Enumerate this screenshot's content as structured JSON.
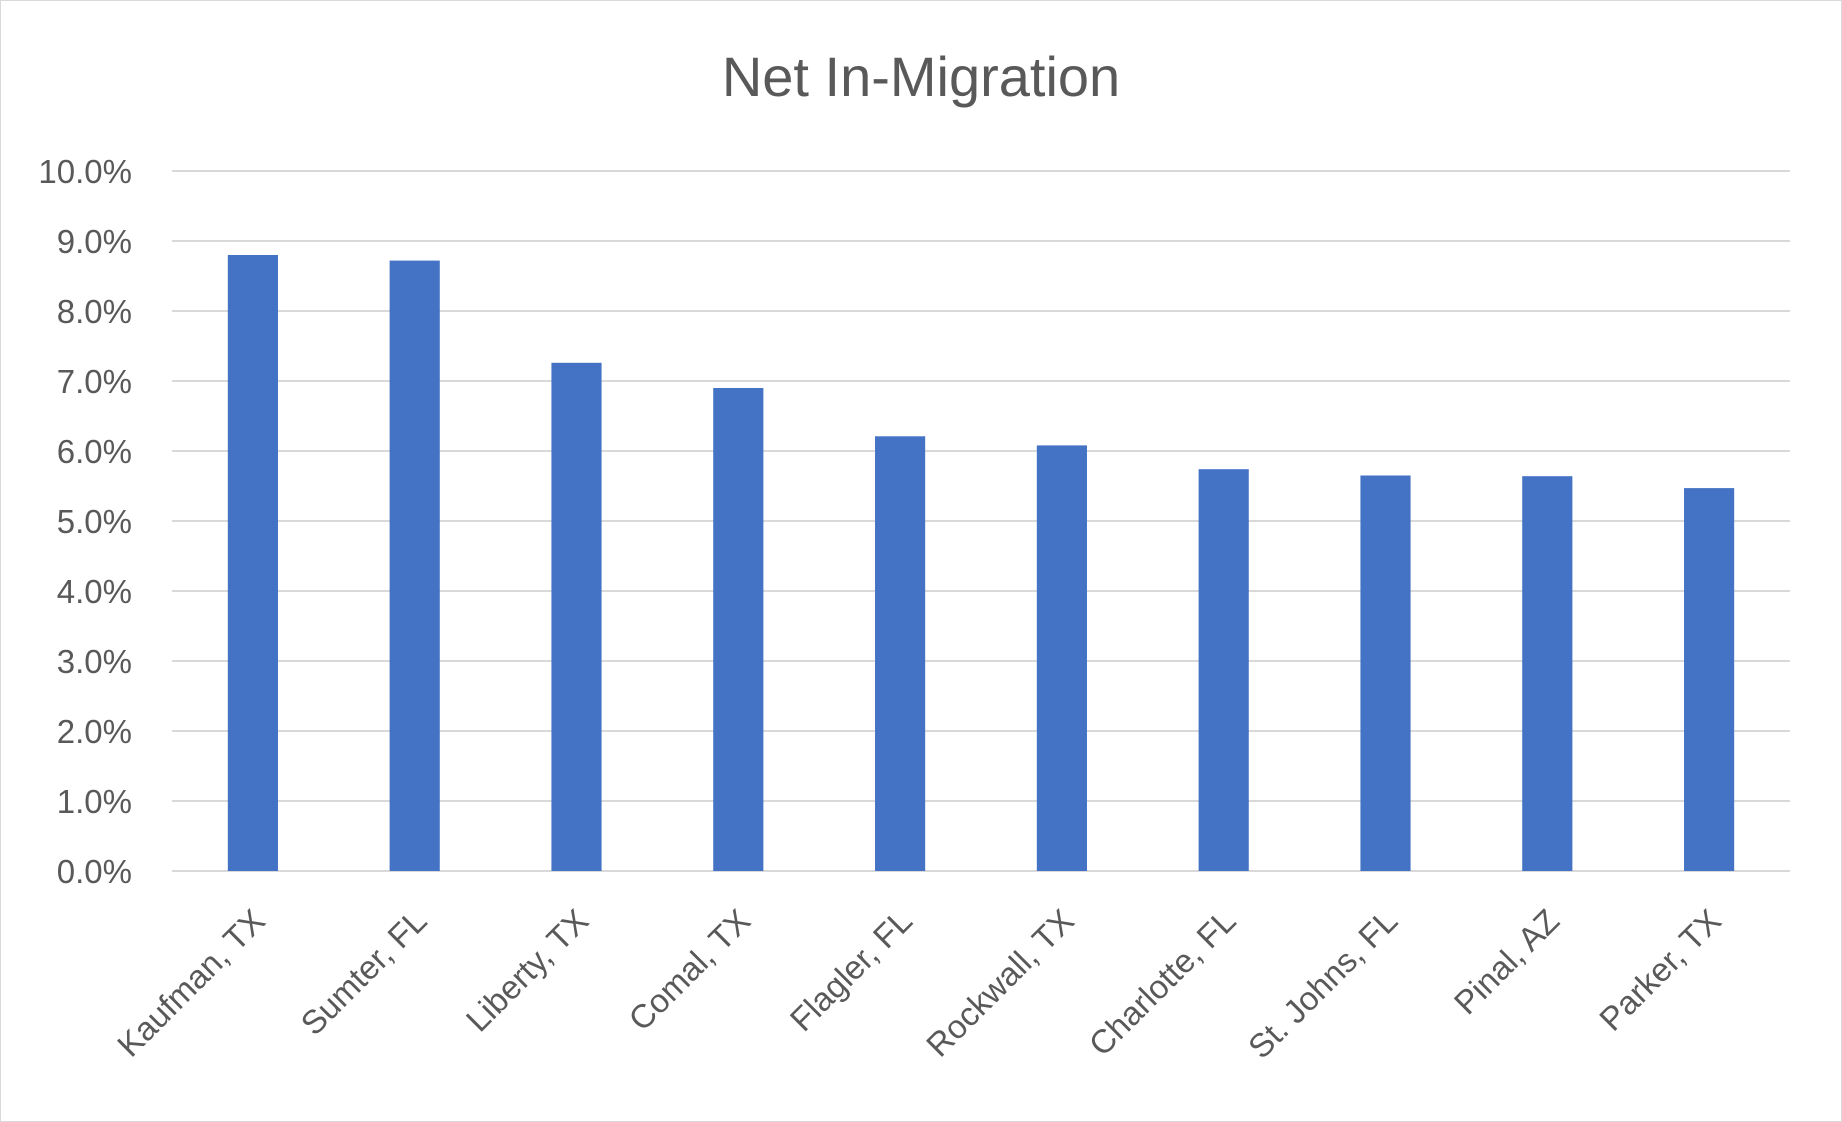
{
  "chart_data": {
    "type": "bar",
    "title": "Net In-Migration",
    "xlabel": "",
    "ylabel": "",
    "categories": [
      "Kaufman, TX",
      "Sumter, FL",
      "Liberty, TX",
      "Comal, TX",
      "Flagler, FL",
      "Rockwall, TX",
      "Charlotte, FL",
      "St. Johns, FL",
      "Pinal, AZ",
      "Parker, TX"
    ],
    "values": [
      8.8,
      8.72,
      7.26,
      6.9,
      6.21,
      6.08,
      5.74,
      5.65,
      5.64,
      5.47
    ],
    "value_format": "percent_1dp",
    "ylim": [
      0,
      10
    ],
    "yticks": [
      "0.0%",
      "1.0%",
      "2.0%",
      "3.0%",
      "4.0%",
      "5.0%",
      "6.0%",
      "7.0%",
      "8.0%",
      "9.0%",
      "10.0%"
    ],
    "grid": true,
    "legend": "none",
    "bar_color": "#4472C4"
  }
}
